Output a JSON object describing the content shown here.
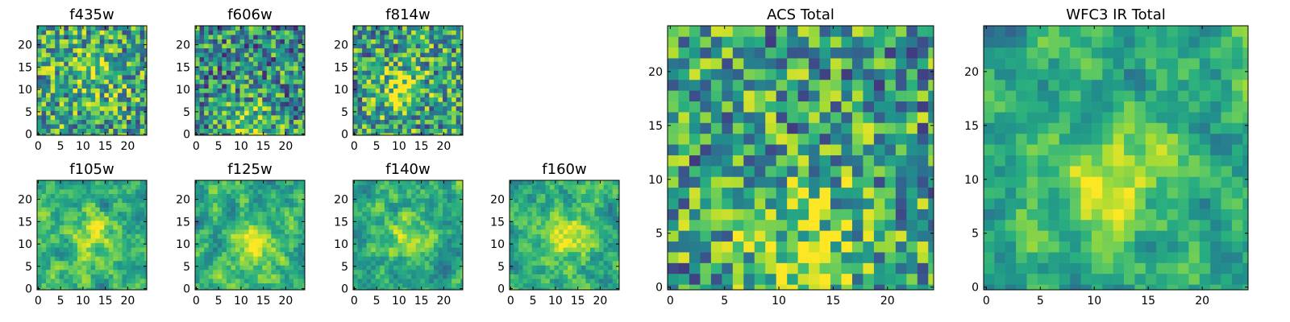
{
  "figure": {
    "background": "#ffffff"
  },
  "chart_data": [
    {
      "type": "heatmap",
      "title": "f435w",
      "grid_size": 25,
      "xticks": [
        0,
        5,
        10,
        15,
        20
      ],
      "yticks": [
        0,
        5,
        10,
        15,
        20
      ],
      "colormap": "viridis",
      "grid": false,
      "legend": "none"
    },
    {
      "type": "heatmap",
      "title": "f606w",
      "grid_size": 25,
      "xticks": [
        0,
        5,
        10,
        15,
        20
      ],
      "yticks": [
        0,
        5,
        10,
        15,
        20
      ],
      "colormap": "viridis",
      "grid": false,
      "legend": "none"
    },
    {
      "type": "heatmap",
      "title": "f814w",
      "grid_size": 25,
      "xticks": [
        0,
        5,
        10,
        15,
        20
      ],
      "yticks": [
        0,
        5,
        10,
        15,
        20
      ],
      "colormap": "viridis",
      "grid": false,
      "legend": "none"
    },
    {
      "type": "heatmap",
      "title": "f105w",
      "grid_size": 25,
      "xticks": [
        0,
        5,
        10,
        15,
        20
      ],
      "yticks": [
        0,
        5,
        10,
        15,
        20
      ],
      "colormap": "viridis",
      "grid": false,
      "legend": "none"
    },
    {
      "type": "heatmap",
      "title": "f125w",
      "grid_size": 25,
      "xticks": [
        0,
        5,
        10,
        15,
        20
      ],
      "yticks": [
        0,
        5,
        10,
        15,
        20
      ],
      "colormap": "viridis",
      "grid": false,
      "legend": "none"
    },
    {
      "type": "heatmap",
      "title": "f140w",
      "grid_size": 25,
      "xticks": [
        0,
        5,
        10,
        15,
        20
      ],
      "yticks": [
        0,
        5,
        10,
        15,
        20
      ],
      "colormap": "viridis",
      "grid": false,
      "legend": "none"
    },
    {
      "type": "heatmap",
      "title": "f160w",
      "grid_size": 25,
      "xticks": [
        0,
        5,
        10,
        15,
        20
      ],
      "yticks": [
        0,
        5,
        10,
        15,
        20
      ],
      "colormap": "viridis",
      "grid": false,
      "legend": "none"
    },
    {
      "type": "heatmap",
      "title": "ACS Total",
      "grid_size": 25,
      "xticks": [
        0,
        5,
        10,
        15,
        20
      ],
      "yticks": [
        0,
        5,
        10,
        15,
        20
      ],
      "colormap": "viridis",
      "grid": false,
      "legend": "none"
    },
    {
      "type": "heatmap",
      "title": "WFC3 IR Total",
      "grid_size": 25,
      "xticks": [
        0,
        5,
        10,
        15,
        20
      ],
      "yticks": [
        0,
        5,
        10,
        15,
        20
      ],
      "colormap": "viridis",
      "grid": false,
      "legend": "none"
    }
  ]
}
